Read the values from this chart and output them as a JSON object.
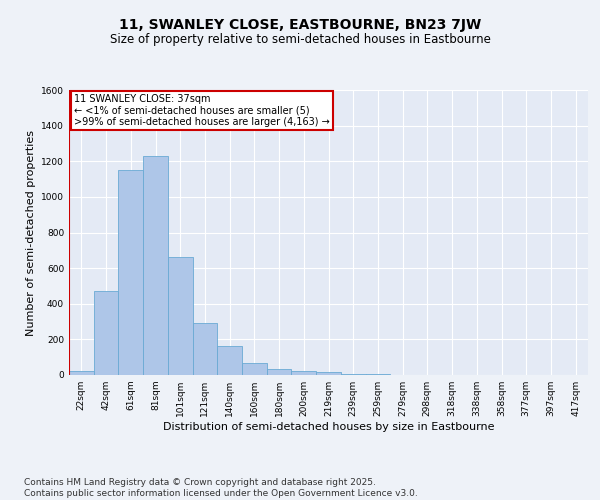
{
  "title": "11, SWANLEY CLOSE, EASTBOURNE, BN23 7JW",
  "subtitle": "Size of property relative to semi-detached houses in Eastbourne",
  "xlabel": "Distribution of semi-detached houses by size in Eastbourne",
  "ylabel": "Number of semi-detached properties",
  "categories": [
    "22sqm",
    "42sqm",
    "61sqm",
    "81sqm",
    "101sqm",
    "121sqm",
    "140sqm",
    "160sqm",
    "180sqm",
    "200sqm",
    "219sqm",
    "239sqm",
    "259sqm",
    "279sqm",
    "298sqm",
    "318sqm",
    "338sqm",
    "358sqm",
    "377sqm",
    "397sqm",
    "417sqm"
  ],
  "values": [
    20,
    470,
    1150,
    1230,
    660,
    290,
    165,
    70,
    35,
    20,
    15,
    5,
    3,
    2,
    1,
    1,
    0.5,
    0.3,
    0.2,
    0.1,
    0.1
  ],
  "bar_color": "#aec6e8",
  "bar_edgecolor": "#6aaad4",
  "annotation_text": "11 SWANLEY CLOSE: 37sqm\n← <1% of semi-detached houses are smaller (5)\n>99% of semi-detached houses are larger (4,163) →",
  "annotation_box_color": "#ffffff",
  "annotation_box_edgecolor": "#cc0000",
  "vline_color": "#cc0000",
  "ylim": [
    0,
    1600
  ],
  "yticks": [
    0,
    200,
    400,
    600,
    800,
    1000,
    1200,
    1400,
    1600
  ],
  "footer": "Contains HM Land Registry data © Crown copyright and database right 2025.\nContains public sector information licensed under the Open Government Licence v3.0.",
  "background_color": "#eef2f8",
  "plot_background": "#e4eaf5",
  "grid_color": "#ffffff",
  "title_fontsize": 10,
  "subtitle_fontsize": 8.5,
  "axis_label_fontsize": 8,
  "tick_fontsize": 6.5,
  "footer_fontsize": 6.5
}
